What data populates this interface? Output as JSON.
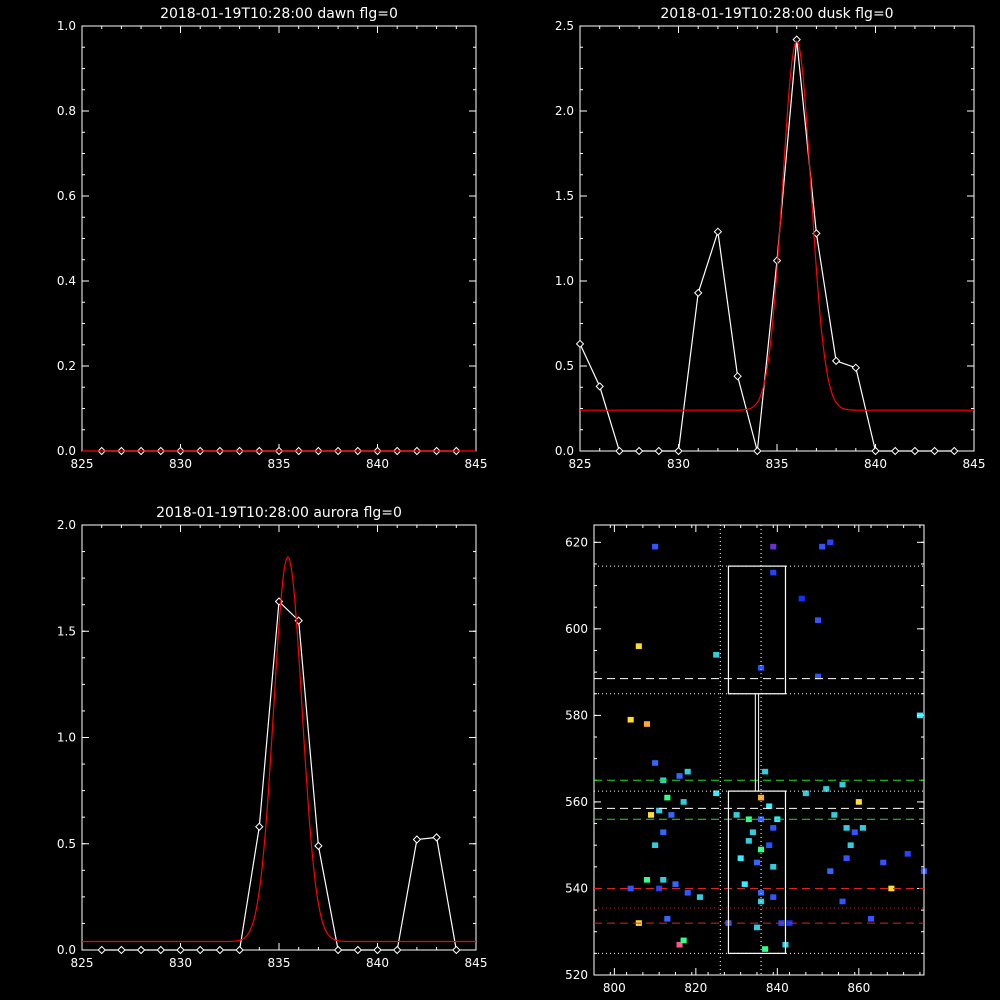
{
  "chart_data": [
    {
      "type": "line",
      "title": "2018-01-19T10:28:00 dawn flg=0",
      "xlim": [
        825,
        845
      ],
      "ylim": [
        0.0,
        1.0
      ],
      "xticks": [
        "825",
        "830",
        "835",
        "840",
        "845"
      ],
      "yticks": [
        "0.0",
        "0.2",
        "0.4",
        "0.6",
        "0.8",
        "1.0"
      ],
      "series": [
        {
          "color": "#ffffff",
          "marker": "diamond",
          "x": [
            826,
            827,
            828,
            829,
            830,
            831,
            832,
            833,
            834,
            835,
            836,
            837,
            838,
            839,
            840,
            841,
            842,
            843,
            844
          ],
          "y": [
            0,
            0,
            0,
            0,
            0,
            0,
            0,
            0,
            0,
            0,
            0,
            0,
            0,
            0,
            0,
            0,
            0,
            0,
            0
          ]
        },
        {
          "color": "#ff0000",
          "marker": "none",
          "x": [
            825,
            845
          ],
          "y": [
            0,
            0
          ]
        }
      ]
    },
    {
      "type": "line",
      "title": "2018-01-19T10:28:00 dusk flg=0",
      "xlim": [
        825,
        845
      ],
      "ylim": [
        0.0,
        2.5
      ],
      "xticks": [
        "825",
        "830",
        "835",
        "840",
        "845"
      ],
      "yticks": [
        "0.0",
        "0.5",
        "1.0",
        "1.5",
        "2.0",
        "2.5"
      ],
      "series": [
        {
          "color": "#ffffff",
          "marker": "diamond",
          "x": [
            825,
            826,
            827,
            828,
            829,
            830,
            831,
            832,
            833,
            834,
            835,
            836,
            837,
            838,
            839,
            840,
            841,
            842,
            843,
            844
          ],
          "y": [
            0.63,
            0.38,
            0,
            0,
            0,
            0,
            0.93,
            1.29,
            0.44,
            0,
            1.12,
            2.42,
            1.28,
            0.53,
            0.49,
            0,
            0,
            0,
            0,
            0
          ]
        },
        {
          "color": "#ff0000",
          "marker": "none",
          "gauss": {
            "center": 836.0,
            "amp": 2.17,
            "sigma": 0.72,
            "base": 0.24
          }
        }
      ]
    },
    {
      "type": "line",
      "title": "2018-01-19T10:28:00 aurora flg=0",
      "xlim": [
        825,
        845
      ],
      "ylim": [
        0.0,
        2.0
      ],
      "xticks": [
        "825",
        "830",
        "835",
        "840",
        "845"
      ],
      "yticks": [
        "0.0",
        "0.5",
        "1.0",
        "1.5",
        "2.0"
      ],
      "series": [
        {
          "color": "#ffffff",
          "marker": "diamond",
          "x": [
            826,
            827,
            828,
            829,
            830,
            831,
            832,
            833,
            834,
            835,
            836,
            837,
            838,
            839,
            840,
            841,
            842,
            843,
            844
          ],
          "y": [
            0,
            0,
            0,
            0,
            0,
            0,
            0,
            0,
            0.58,
            1.64,
            1.55,
            0.49,
            0,
            0,
            0,
            0,
            0.52,
            0.53,
            0
          ]
        },
        {
          "color": "#ff0000",
          "marker": "none",
          "gauss": {
            "center": 835.45,
            "amp": 1.81,
            "sigma": 0.72,
            "base": 0.04
          }
        }
      ]
    },
    {
      "type": "heatmap",
      "xlim": [
        795,
        876
      ],
      "ylim": [
        520,
        624
      ],
      "xticks": [
        "800",
        "820",
        "840",
        "860"
      ],
      "yticks": [
        "520",
        "540",
        "560",
        "580",
        "600",
        "620"
      ],
      "hlines": [
        {
          "y": 614.5,
          "color": "#ffffff",
          "style": "dotted"
        },
        {
          "y": 588.5,
          "color": "#ffffff",
          "style": "dashed"
        },
        {
          "y": 585,
          "color": "#ffffff",
          "style": "dotted"
        },
        {
          "y": 565,
          "color": "#22dd22",
          "style": "dashed"
        },
        {
          "y": 562.5,
          "color": "#ffffff",
          "style": "dotted"
        },
        {
          "y": 558.5,
          "color": "#ffffff",
          "style": "dashed"
        },
        {
          "y": 556,
          "color": "#22dd22",
          "style": "dashed"
        },
        {
          "y": 540,
          "color": "#dd2222",
          "style": "dashed"
        },
        {
          "y": 535.5,
          "color": "#dd2222",
          "style": "dotted"
        },
        {
          "y": 532,
          "color": "#dd2222",
          "style": "dashed"
        },
        {
          "y": 525,
          "color": "#ffffff",
          "style": "dotted"
        }
      ],
      "vlines": [
        {
          "x": 826,
          "color": "#ffffff",
          "style": "dotted"
        },
        {
          "x": 836,
          "color": "#ffffff",
          "style": "dotted"
        }
      ],
      "boxes": [
        {
          "x0": 828,
          "x1": 842,
          "y0": 585,
          "y1": 614.5
        },
        {
          "x0": 828,
          "x1": 842,
          "y0": 525,
          "y1": 562.5
        }
      ],
      "connector": {
        "x": 835,
        "y0": 562.5,
        "y1": 585
      },
      "cells": [
        [
          810,
          619,
          "#3355ff"
        ],
        [
          839,
          619,
          "#6633cc"
        ],
        [
          851,
          619,
          "#3355ff"
        ],
        [
          853,
          620,
          "#2244ff"
        ],
        [
          839,
          613,
          "#2244ff"
        ],
        [
          846,
          607,
          "#1133ff"
        ],
        [
          850,
          602,
          "#3355ff"
        ],
        [
          806,
          596,
          "#ffdd33"
        ],
        [
          825,
          594,
          "#33ccdd"
        ],
        [
          836,
          591,
          "#2255ff"
        ],
        [
          850,
          589,
          "#3355ff"
        ],
        [
          804,
          579,
          "#ffdd33"
        ],
        [
          808,
          578,
          "#ffaa33"
        ],
        [
          875,
          580,
          "#33eeff"
        ],
        [
          810,
          569,
          "#3366ff"
        ],
        [
          818,
          567,
          "#33ccdd"
        ],
        [
          812,
          565,
          "#33ccdd"
        ],
        [
          816,
          566,
          "#3366ff"
        ],
        [
          837,
          567,
          "#33ccdd"
        ],
        [
          847,
          562,
          "#33ccdd"
        ],
        [
          852,
          563,
          "#33ccdd"
        ],
        [
          856,
          564,
          "#33ccdd"
        ],
        [
          860,
          560,
          "#ffdd33"
        ],
        [
          825,
          562,
          "#33eeff"
        ],
        [
          813,
          561,
          "#33ff88"
        ],
        [
          811,
          558,
          "#33ccdd"
        ],
        [
          814,
          557,
          "#3366ff"
        ],
        [
          817,
          560,
          "#33ccdd"
        ],
        [
          809,
          557,
          "#ffdd33"
        ],
        [
          830,
          557,
          "#33ccdd"
        ],
        [
          833,
          556,
          "#33ff88"
        ],
        [
          836,
          561,
          "#ffaa33"
        ],
        [
          838,
          559,
          "#33eeff"
        ],
        [
          836,
          556,
          "#3366ff"
        ],
        [
          839,
          554,
          "#3355ff"
        ],
        [
          834,
          553,
          "#33ccdd"
        ],
        [
          840,
          556,
          "#33eeff"
        ],
        [
          854,
          557,
          "#33ccdd"
        ],
        [
          857,
          554,
          "#33ccdd"
        ],
        [
          859,
          553,
          "#3355ff"
        ],
        [
          861,
          554,
          "#33ccdd"
        ],
        [
          812,
          553,
          "#3366ff"
        ],
        [
          836,
          549,
          "#33ff88"
        ],
        [
          838,
          550,
          "#2255ff"
        ],
        [
          833,
          551,
          "#33ccdd"
        ],
        [
          858,
          550,
          "#33ccdd"
        ],
        [
          857,
          547,
          "#3355ff"
        ],
        [
          810,
          550,
          "#33ccdd"
        ],
        [
          831,
          547,
          "#33eeff"
        ],
        [
          835,
          546,
          "#3366ff"
        ],
        [
          839,
          545,
          "#33ccdd"
        ],
        [
          866,
          546,
          "#3355ff"
        ],
        [
          872,
          548,
          "#2244ff"
        ],
        [
          876,
          544,
          "#3355ff"
        ],
        [
          853,
          544,
          "#3366ff"
        ],
        [
          812,
          542,
          "#33ccdd"
        ],
        [
          808,
          542,
          "#33ff88"
        ],
        [
          811,
          540,
          "#2244ff"
        ],
        [
          815,
          541,
          "#3366ff"
        ],
        [
          818,
          539,
          "#3355ff"
        ],
        [
          804,
          540,
          "#3355ff"
        ],
        [
          821,
          538,
          "#33ccdd"
        ],
        [
          832,
          541,
          "#33eeff"
        ],
        [
          836,
          539,
          "#3366ff"
        ],
        [
          836,
          537,
          "#33ccdd"
        ],
        [
          839,
          538,
          "#3355ff"
        ],
        [
          856,
          537,
          "#3355ff"
        ],
        [
          868,
          540,
          "#ffdd33"
        ],
        [
          813,
          533,
          "#3366ff"
        ],
        [
          806,
          532,
          "#ffdd33"
        ],
        [
          828,
          532,
          "#3355ff"
        ],
        [
          835,
          531,
          "#33ccdd"
        ],
        [
          841,
          532,
          "#2244ff"
        ],
        [
          843,
          532,
          "#1133ff"
        ],
        [
          863,
          533,
          "#3355ff"
        ],
        [
          816,
          527,
          "#ff5588"
        ],
        [
          817,
          528,
          "#33ff88"
        ],
        [
          842,
          527,
          "#33ccdd"
        ],
        [
          837,
          526,
          "#33ff88"
        ]
      ]
    }
  ]
}
